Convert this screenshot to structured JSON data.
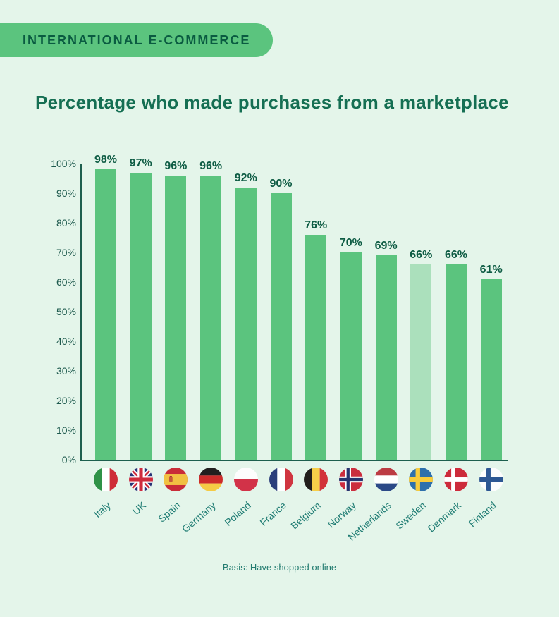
{
  "header": {
    "badge": "INTERNATIONAL E-COMMERCE",
    "title": "Percentage who made purchases from a marketplace"
  },
  "footer": {
    "basis": "Basis: Have shopped online"
  },
  "colors": {
    "background": "#E4F5EA",
    "bar": "#5BC47E",
    "bar_highlighted": "#ABE0BC",
    "badge_background": "#5BC47E",
    "badge_text": "#0A5B41",
    "title_text": "#156F53",
    "value_label_text": "#0E5C44",
    "axis_line": "#1D5F4E",
    "axis_tick_text": "#1E5A4E",
    "country_label_text": "#1F7C73",
    "footnote_text": "#237C70"
  },
  "chart_data": {
    "type": "bar",
    "title": "Percentage who made purchases from a marketplace",
    "categories": [
      "Italy",
      "UK",
      "Spain",
      "Germany",
      "Poland",
      "France",
      "Belgium",
      "Norway",
      "Netherlands",
      "Sweden",
      "Denmark",
      "Finland"
    ],
    "values": [
      98,
      97,
      96,
      96,
      92,
      90,
      76,
      70,
      69,
      66,
      66,
      61
    ],
    "value_labels": [
      "98%",
      "97%",
      "96%",
      "96%",
      "92%",
      "90%",
      "76%",
      "70%",
      "69%",
      "66%",
      "66%",
      "61%"
    ],
    "flag_icons": [
      "flag-italy-icon",
      "flag-uk-icon",
      "flag-spain-icon",
      "flag-germany-icon",
      "flag-poland-icon",
      "flag-france-icon",
      "flag-belgium-icon",
      "flag-norway-icon",
      "flag-netherlands-icon",
      "flag-sweden-icon",
      "flag-denmark-icon",
      "flag-finland-icon"
    ],
    "highlighted_category": "Sweden",
    "highlighted_index": 9,
    "y_ticks": [
      "100%",
      "90%",
      "80%",
      "70%",
      "60%",
      "50%",
      "40%",
      "30%",
      "20%",
      "10%",
      "0%"
    ],
    "ylim": [
      0,
      100
    ],
    "xlabel": "",
    "ylabel": "",
    "grid": false,
    "legend": null,
    "basis_note": "Basis: Have shopped online"
  }
}
